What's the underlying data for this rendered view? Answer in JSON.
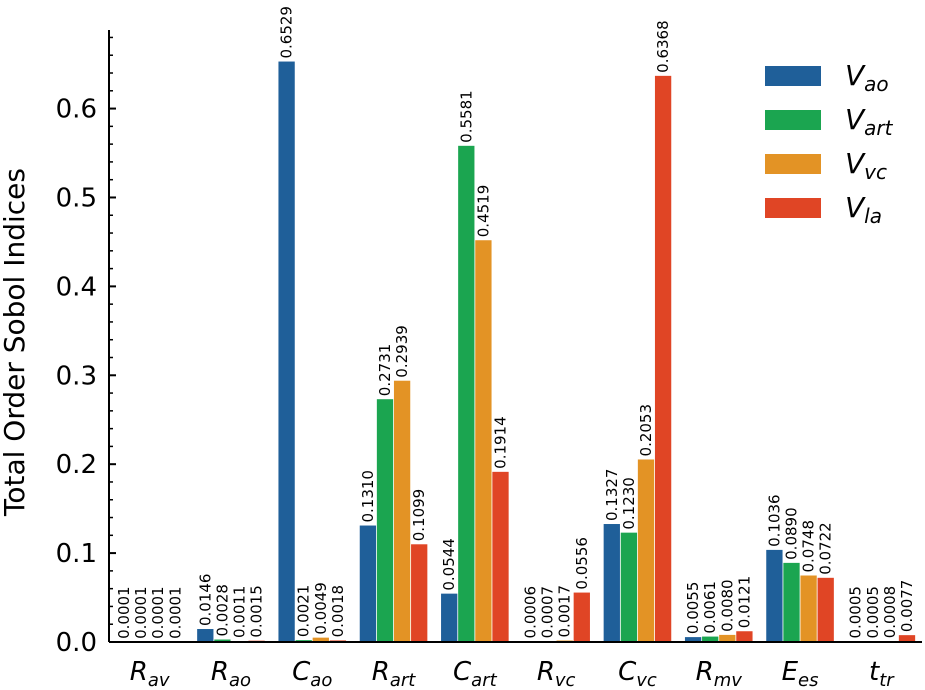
{
  "chart_data": {
    "type": "bar",
    "title": "",
    "xlabel": "",
    "ylabel": "Total Order Sobol Indices",
    "ylim": [
      0,
      0.685
    ],
    "yticks": [
      0.0,
      0.1,
      0.2,
      0.3,
      0.4,
      0.5,
      0.6
    ],
    "ytick_labels": [
      "0.0",
      "0.1",
      "0.2",
      "0.3",
      "0.4",
      "0.5",
      "0.6"
    ],
    "grid": false,
    "legend_position": "top-right",
    "categories": [
      {
        "base": "R",
        "sub": "av"
      },
      {
        "base": "R",
        "sub": "ao"
      },
      {
        "base": "C",
        "sub": "ao"
      },
      {
        "base": "R",
        "sub": "art"
      },
      {
        "base": "C",
        "sub": "art"
      },
      {
        "base": "R",
        "sub": "vc"
      },
      {
        "base": "C",
        "sub": "vc"
      },
      {
        "base": "R",
        "sub": "mv"
      },
      {
        "base": "E",
        "sub": "es"
      },
      {
        "base": "t",
        "sub": "tr"
      }
    ],
    "series": [
      {
        "name": "V_ao",
        "base": "V",
        "sub": "ao",
        "color": "#1f5f99",
        "values": [
          0.0001,
          0.0146,
          0.6529,
          0.131,
          0.0544,
          0.0006,
          0.1327,
          0.0055,
          0.1036,
          0.0005
        ],
        "labels": [
          "0.0001",
          "0.0146",
          "0.6529",
          "0.1310",
          "0.0544",
          "0.0006",
          "0.1327",
          "0.0055",
          "0.1036",
          "0.0005"
        ]
      },
      {
        "name": "V_art",
        "base": "V",
        "sub": "art",
        "color": "#1ba550",
        "values": [
          0.0001,
          0.0028,
          0.0021,
          0.2731,
          0.5581,
          0.0007,
          0.123,
          0.0061,
          0.089,
          0.0005
        ],
        "labels": [
          "0.0001",
          "0.0028",
          "0.0021",
          "0.2731",
          "0.5581",
          "0.0007",
          "0.1230",
          "0.0061",
          "0.0890",
          "0.0005"
        ]
      },
      {
        "name": "V_vc",
        "base": "V",
        "sub": "vc",
        "color": "#e39325",
        "values": [
          0.0001,
          0.0011,
          0.0049,
          0.2939,
          0.4519,
          0.0017,
          0.2053,
          0.008,
          0.0748,
          0.0008
        ],
        "labels": [
          "0.0001",
          "0.0011",
          "0.0049",
          "0.2939",
          "0.4519",
          "0.0017",
          "0.2053",
          "0.0080",
          "0.0748",
          "0.0008"
        ]
      },
      {
        "name": "V_la",
        "base": "V",
        "sub": "la",
        "color": "#e04525",
        "values": [
          0.0001,
          0.0015,
          0.0018,
          0.1099,
          0.1914,
          0.0556,
          0.6368,
          0.0121,
          0.0722,
          0.0077
        ],
        "labels": [
          "0.0001",
          "0.0015",
          "0.0018",
          "0.1099",
          "0.1914",
          "0.0556",
          "0.6368",
          "0.0121",
          "0.0722",
          "0.0077"
        ]
      }
    ]
  }
}
